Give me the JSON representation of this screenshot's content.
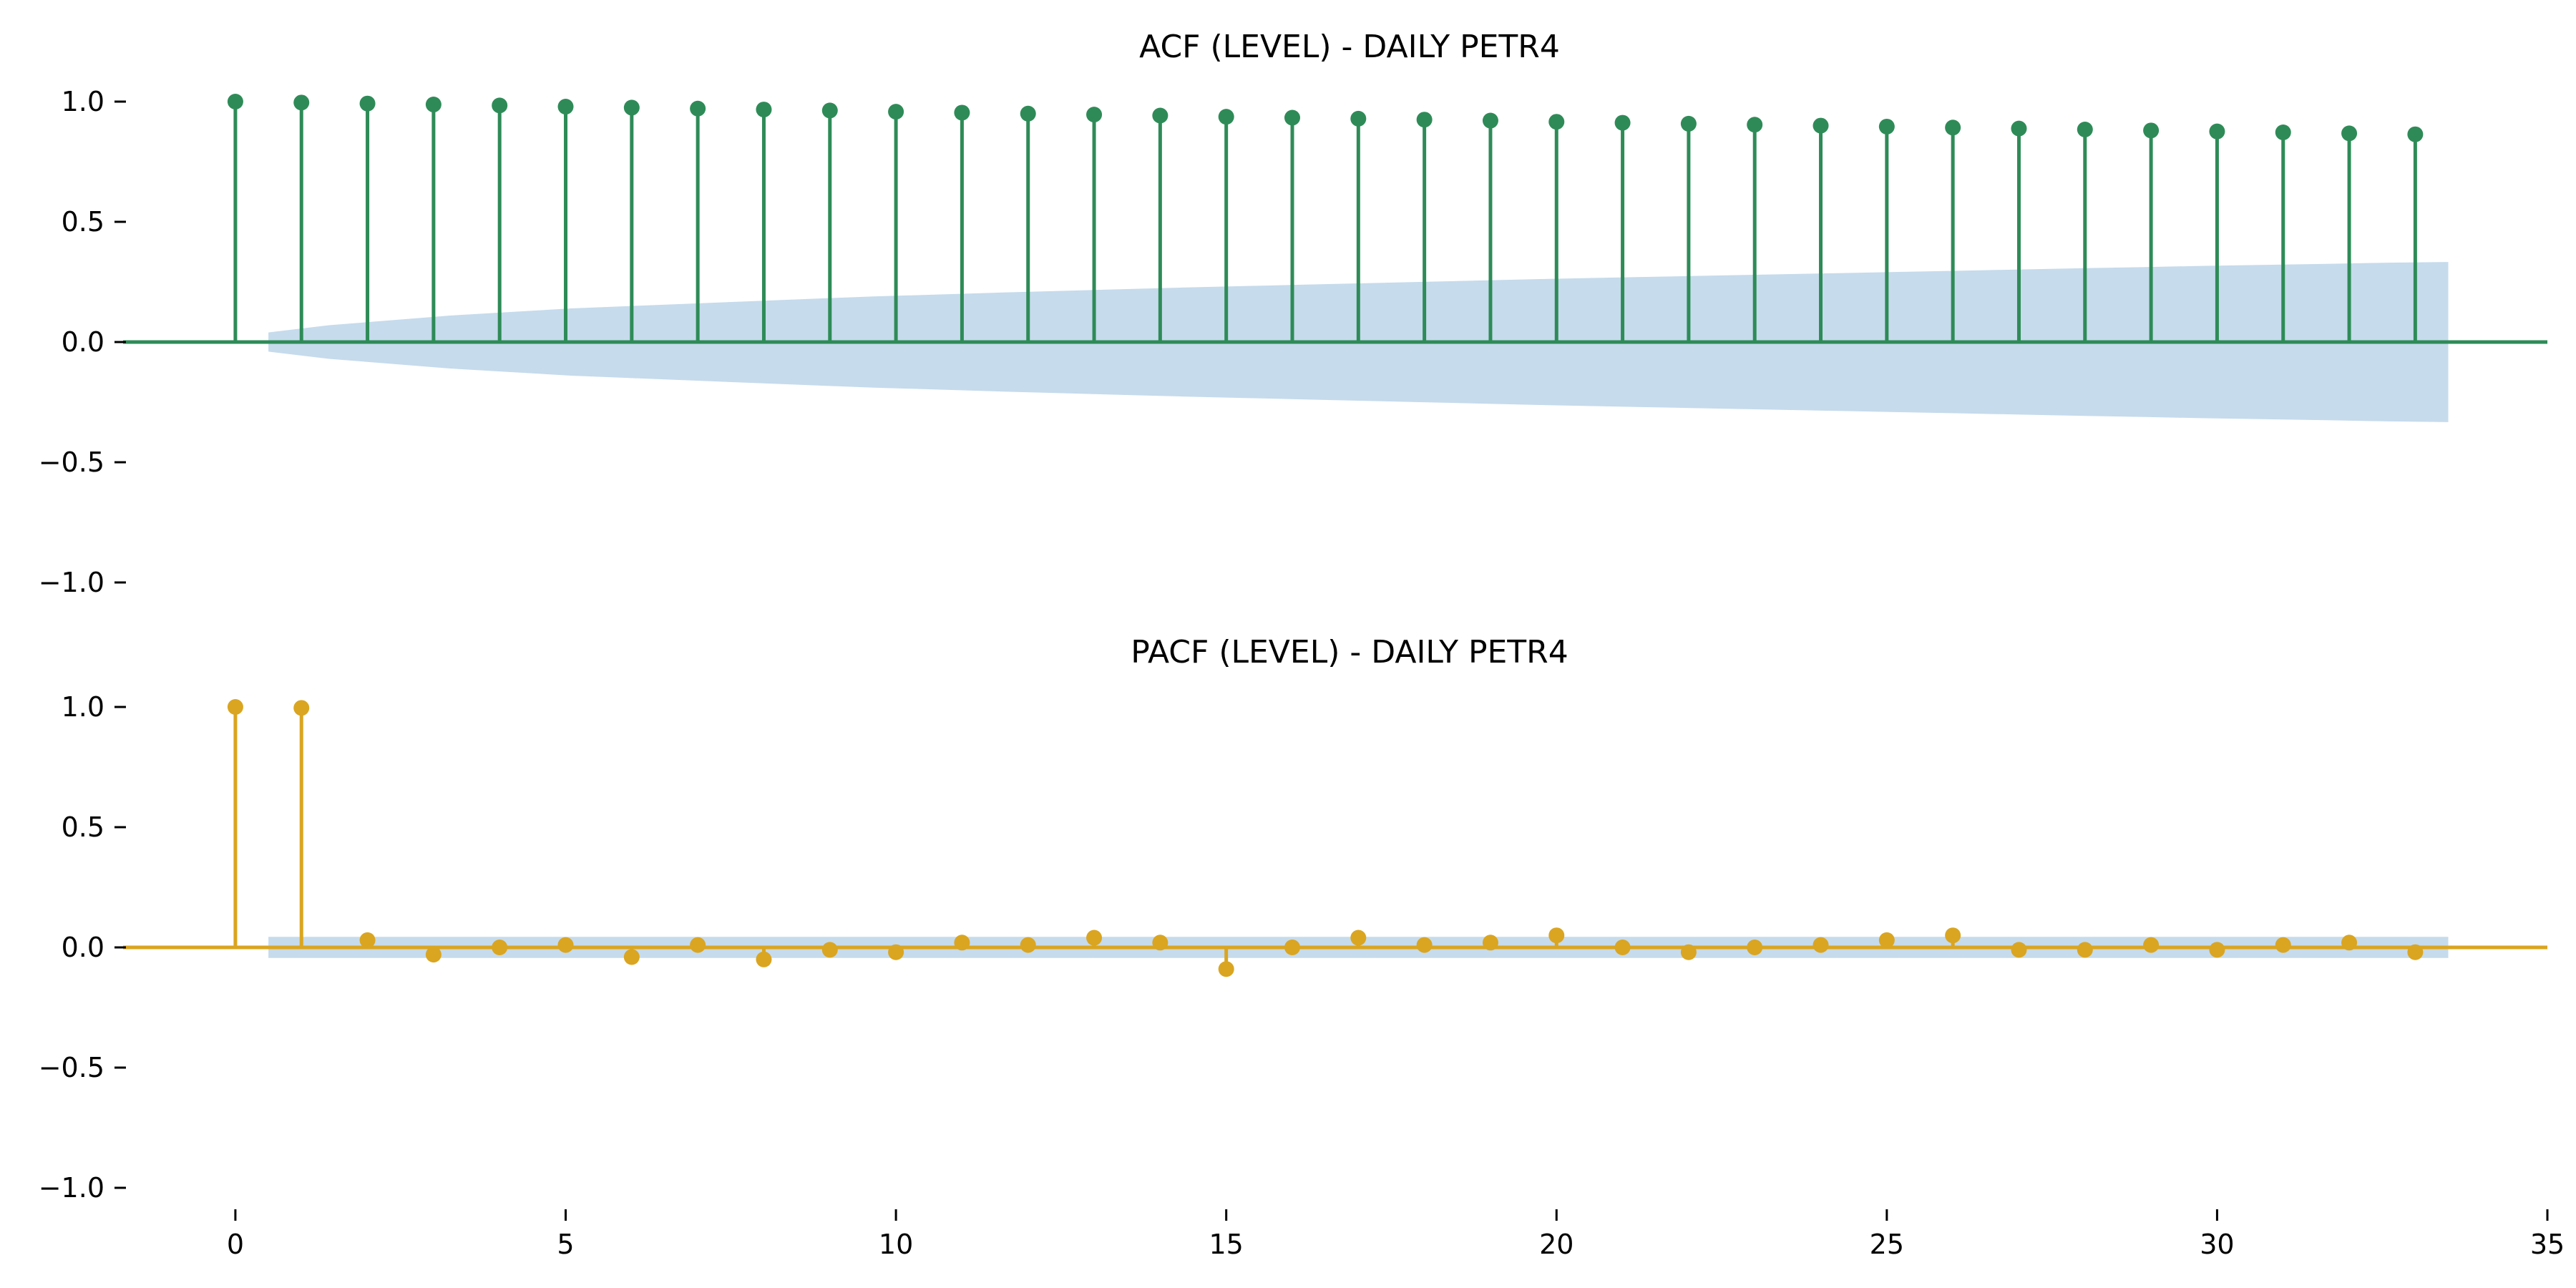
{
  "chart_data": [
    {
      "type": "stem",
      "title": "ACF (LEVEL) - DAILY PETR4",
      "color": "#2e8b57",
      "band_color": "#c6dbec",
      "xlim": [
        -1.7,
        35
      ],
      "ylim": [
        -1.0,
        1.0
      ],
      "yticks": [
        1.0,
        0.5,
        0.0,
        -0.5,
        -1.0
      ],
      "ytick_labels": [
        "1.0",
        "0.5",
        "0.0",
        "−0.5",
        "−1.0"
      ],
      "lags": [
        0,
        1,
        2,
        3,
        4,
        5,
        6,
        7,
        8,
        9,
        10,
        11,
        12,
        13,
        14,
        15,
        16,
        17,
        18,
        19,
        20,
        21,
        22,
        23,
        24,
        25,
        26,
        27,
        28,
        29,
        30,
        31,
        32,
        33
      ],
      "values": [
        1.0,
        0.996,
        0.992,
        0.988,
        0.984,
        0.979,
        0.975,
        0.971,
        0.967,
        0.963,
        0.958,
        0.954,
        0.95,
        0.946,
        0.942,
        0.937,
        0.933,
        0.929,
        0.925,
        0.921,
        0.916,
        0.912,
        0.908,
        0.904,
        0.9,
        0.896,
        0.892,
        0.888,
        0.884,
        0.88,
        0.876,
        0.872,
        0.868,
        0.864
      ],
      "conf_band": [
        0.04,
        0.07,
        0.09,
        0.11,
        0.125,
        0.14,
        0.15,
        0.16,
        0.17,
        0.18,
        0.19,
        0.197,
        0.205,
        0.212,
        0.219,
        0.226,
        0.232,
        0.238,
        0.244,
        0.25,
        0.256,
        0.262,
        0.267,
        0.272,
        0.277,
        0.282,
        0.287,
        0.292,
        0.297,
        0.302,
        0.307,
        0.312,
        0.317,
        0.321,
        0.325,
        0.33,
        0.333
      ]
    },
    {
      "type": "stem",
      "title": "PACF (LEVEL) - DAILY PETR4",
      "color": "#daa520",
      "band_color": "#c6dbec",
      "xlim": [
        -1.7,
        35
      ],
      "ylim": [
        -1.0,
        1.0
      ],
      "yticks": [
        1.0,
        0.5,
        0.0,
        -0.5,
        -1.0
      ],
      "ytick_labels": [
        "1.0",
        "0.5",
        "0.0",
        "−0.5",
        "−1.0"
      ],
      "xticks": [
        0,
        5,
        10,
        15,
        20,
        25,
        30,
        35
      ],
      "xtick_labels": [
        "0",
        "5",
        "10",
        "15",
        "20",
        "25",
        "30",
        "35"
      ],
      "lags": [
        0,
        1,
        2,
        3,
        4,
        5,
        6,
        7,
        8,
        9,
        10,
        11,
        12,
        13,
        14,
        15,
        16,
        17,
        18,
        19,
        20,
        21,
        22,
        23,
        24,
        25,
        26,
        27,
        28,
        29,
        30,
        31,
        32,
        33
      ],
      "values": [
        1.0,
        0.996,
        0.03,
        -0.03,
        0.0,
        0.01,
        -0.04,
        0.01,
        -0.05,
        -0.01,
        -0.02,
        0.02,
        0.01,
        0.04,
        0.02,
        -0.09,
        0.0,
        0.04,
        0.01,
        0.02,
        0.05,
        0.0,
        -0.02,
        0.0,
        0.01,
        0.03,
        0.05,
        -0.01,
        -0.01,
        0.01,
        -0.01,
        0.01,
        0.02,
        -0.02
      ],
      "conf_band": [
        0.044
      ]
    }
  ]
}
